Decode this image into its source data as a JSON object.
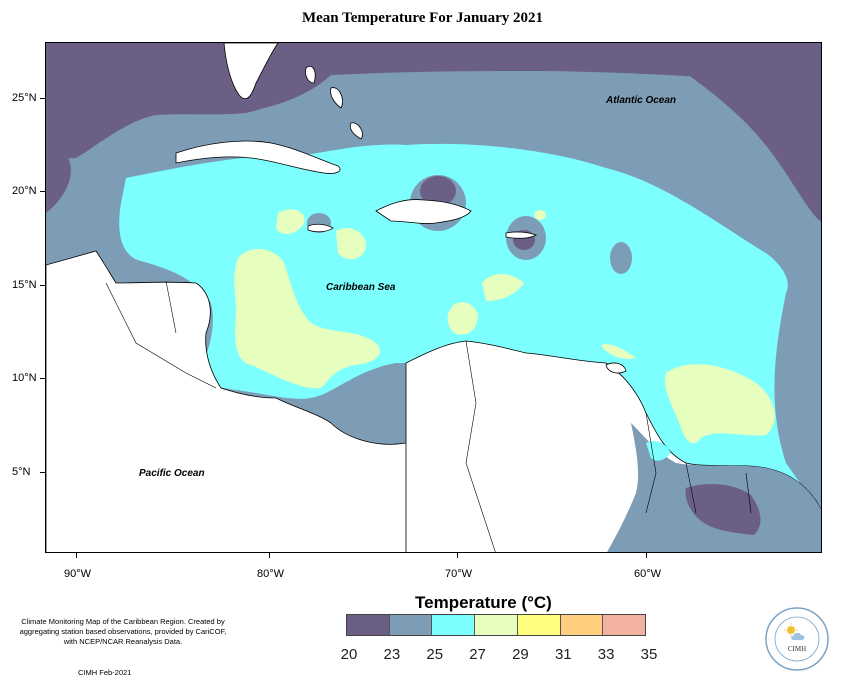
{
  "title": "Mean Temperature For January 2021",
  "map": {
    "region": "Caribbean",
    "labels": {
      "atlantic": "Atlantic Ocean",
      "caribbean": "Caribbean Sea",
      "pacific": "Pacific Ocean"
    },
    "lat_ticks": [
      "25°N",
      "20°N",
      "15°N",
      "10°N",
      "5°N"
    ],
    "lon_ticks": [
      "90°W",
      "80°W",
      "70°W",
      "60°W"
    ]
  },
  "legend": {
    "title": "Temperature (°C)",
    "bins": [
      "20",
      "23",
      "25",
      "27",
      "29",
      "31",
      "33",
      "35"
    ],
    "colors": [
      "#6b5f86",
      "#7d9cb5",
      "#7dffff",
      "#e6ffbf",
      "#ffff7f",
      "#ffcf7f",
      "#f2b2a0"
    ]
  },
  "credit": {
    "text": "Climate Monitoring Map of the Caribbean Region. Created by aggregating station based observations, provided by CariCOF, with NCEP/NCAR Reanalysis Data.",
    "date": "CIMH Feb-2021"
  },
  "logo": {
    "label": "CIMH"
  },
  "colors": {
    "c20": "#6b5f86",
    "c23": "#7d9cb5",
    "c25": "#7dffff",
    "c27": "#e6ffbf"
  }
}
